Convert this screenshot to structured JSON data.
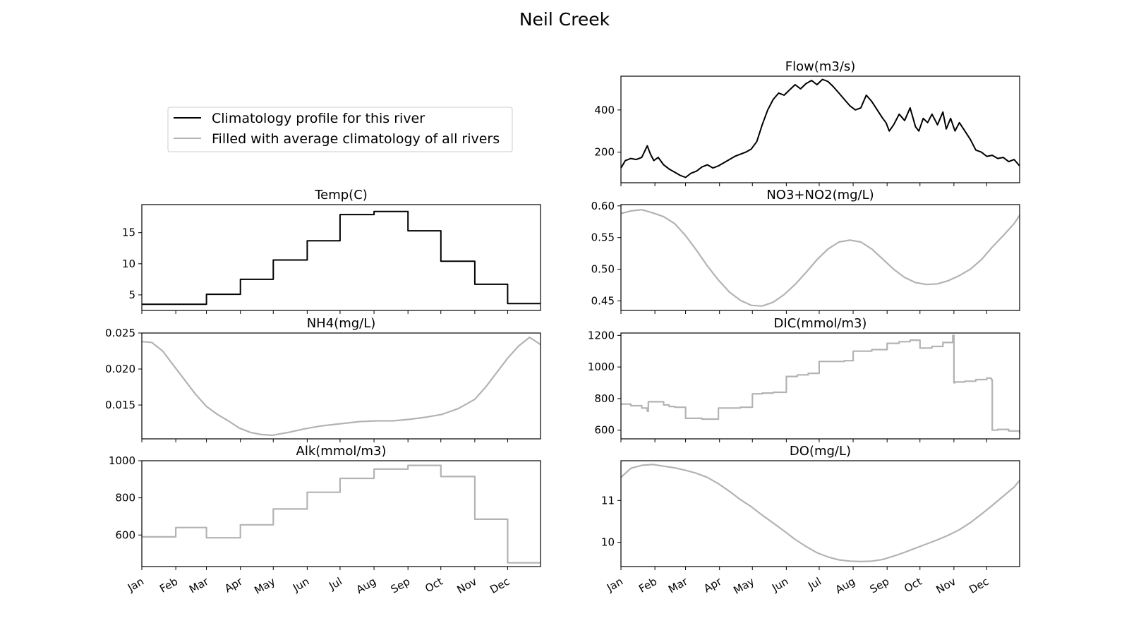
{
  "title": "Neil Creek",
  "months": [
    "Jan",
    "Feb",
    "Mar",
    "Apr",
    "May",
    "Jun",
    "Jul",
    "Aug",
    "Sep",
    "Oct",
    "Nov",
    "Dec"
  ],
  "colors": {
    "river": "#000000",
    "filled": "#b3b3b3",
    "frame": "#000000"
  },
  "legend": {
    "items": [
      {
        "label": "Climatology profile for this river",
        "color": "#000000"
      },
      {
        "label": "Filled with average climatology of all rivers",
        "color": "#b3b3b3"
      }
    ]
  },
  "chart_data": [
    {
      "id": "temp",
      "type": "line",
      "title": "Temp(C)",
      "source": "river",
      "kind": "step",
      "ylim": [
        2.5,
        19.5
      ],
      "yticks": [
        5,
        10,
        15
      ],
      "x": [
        1,
        32,
        60,
        91,
        121,
        152,
        182,
        213,
        244,
        274,
        305,
        335,
        365
      ],
      "y": [
        3.5,
        3.5,
        5.1,
        7.5,
        10.6,
        13.7,
        17.9,
        18.4,
        15.3,
        10.4,
        6.7,
        3.6,
        3.6
      ]
    },
    {
      "id": "nh4",
      "type": "line",
      "title": "NH4(mg/L)",
      "source": "filled",
      "kind": "smooth",
      "ylim": [
        0.0103,
        0.025
      ],
      "yticks": [
        0.015,
        0.02,
        0.025
      ],
      "x": [
        1,
        10,
        20,
        30,
        40,
        50,
        60,
        70,
        80,
        90,
        100,
        110,
        120,
        135,
        150,
        165,
        182,
        200,
        215,
        230,
        245,
        260,
        275,
        290,
        305,
        315,
        325,
        335,
        345,
        355,
        365
      ],
      "y": [
        0.0238,
        0.0237,
        0.0225,
        0.0205,
        0.0185,
        0.0165,
        0.0148,
        0.0137,
        0.0128,
        0.0118,
        0.0112,
        0.0109,
        0.0108,
        0.0112,
        0.0117,
        0.0121,
        0.0124,
        0.0127,
        0.0128,
        0.0128,
        0.013,
        0.0133,
        0.0137,
        0.0145,
        0.0158,
        0.0175,
        0.0195,
        0.0215,
        0.0232,
        0.0244,
        0.0234
      ]
    },
    {
      "id": "alk",
      "type": "line",
      "title": "Alk(mmol/m3)",
      "source": "filled",
      "kind": "step",
      "ylim": [
        430,
        1000
      ],
      "yticks": [
        600,
        800,
        1000
      ],
      "x": [
        1,
        32,
        60,
        91,
        121,
        152,
        182,
        213,
        244,
        274,
        305,
        335,
        365
      ],
      "y": [
        590,
        640,
        585,
        655,
        740,
        830,
        905,
        955,
        975,
        915,
        685,
        450,
        450
      ]
    },
    {
      "id": "flow",
      "type": "line",
      "title": "Flow(m3/s)",
      "source": "river",
      "kind": "smooth",
      "ylim": [
        55,
        560
      ],
      "yticks": [
        200,
        400
      ],
      "x": [
        1,
        5,
        10,
        15,
        20,
        25,
        28,
        31,
        35,
        40,
        45,
        50,
        55,
        60,
        65,
        70,
        75,
        80,
        85,
        90,
        95,
        100,
        105,
        110,
        115,
        120,
        125,
        130,
        135,
        140,
        145,
        150,
        155,
        160,
        165,
        170,
        175,
        180,
        185,
        190,
        195,
        200,
        205,
        210,
        215,
        220,
        225,
        230,
        235,
        240,
        243,
        246,
        250,
        255,
        260,
        265,
        270,
        273,
        277,
        281,
        285,
        290,
        295,
        298,
        302,
        306,
        310,
        315,
        320,
        325,
        330,
        335,
        340,
        345,
        350,
        355,
        360,
        365
      ],
      "y": [
        125,
        160,
        170,
        165,
        175,
        230,
        190,
        160,
        175,
        140,
        120,
        105,
        90,
        80,
        100,
        110,
        130,
        140,
        125,
        135,
        150,
        165,
        180,
        190,
        200,
        215,
        250,
        330,
        400,
        450,
        480,
        470,
        495,
        520,
        500,
        525,
        540,
        520,
        545,
        535,
        510,
        480,
        450,
        420,
        400,
        410,
        470,
        440,
        400,
        360,
        340,
        300,
        330,
        380,
        350,
        410,
        320,
        300,
        360,
        340,
        380,
        330,
        390,
        310,
        360,
        300,
        340,
        300,
        260,
        210,
        200,
        180,
        185,
        170,
        175,
        155,
        165,
        135
      ]
    },
    {
      "id": "no3",
      "type": "line",
      "title": "NO3+NO2(mg/L)",
      "source": "filled",
      "kind": "smooth",
      "ylim": [
        0.435,
        0.602
      ],
      "yticks": [
        0.45,
        0.5,
        0.55,
        0.6
      ],
      "x": [
        1,
        10,
        20,
        30,
        40,
        50,
        60,
        70,
        80,
        90,
        100,
        110,
        120,
        130,
        140,
        150,
        160,
        170,
        180,
        190,
        200,
        210,
        220,
        230,
        240,
        250,
        260,
        270,
        280,
        290,
        300,
        310,
        320,
        330,
        340,
        350,
        360,
        365
      ],
      "y": [
        0.588,
        0.592,
        0.594,
        0.589,
        0.583,
        0.572,
        0.553,
        0.53,
        0.505,
        0.483,
        0.464,
        0.451,
        0.443,
        0.442,
        0.448,
        0.46,
        0.476,
        0.495,
        0.515,
        0.532,
        0.543,
        0.546,
        0.543,
        0.532,
        0.516,
        0.5,
        0.487,
        0.479,
        0.476,
        0.477,
        0.482,
        0.49,
        0.5,
        0.515,
        0.535,
        0.553,
        0.572,
        0.585
      ]
    },
    {
      "id": "dic",
      "type": "line",
      "title": "DIC(mmol/m3)",
      "source": "filled",
      "kind": "step",
      "ylim": [
        545,
        1215
      ],
      "yticks": [
        600,
        800,
        1000,
        1200
      ],
      "x": [
        1,
        10,
        20,
        25,
        26,
        40,
        45,
        50,
        60,
        75,
        90,
        100,
        110,
        121,
        130,
        140,
        152,
        162,
        172,
        182,
        195,
        205,
        213,
        230,
        244,
        255,
        265,
        274,
        285,
        295,
        304,
        305,
        306,
        315,
        325,
        335,
        339,
        340,
        345,
        355,
        365
      ],
      "y": [
        765,
        755,
        740,
        720,
        780,
        760,
        750,
        745,
        675,
        670,
        740,
        740,
        745,
        830,
        835,
        840,
        940,
        950,
        960,
        1035,
        1035,
        1040,
        1100,
        1110,
        1150,
        1160,
        1170,
        1120,
        1130,
        1155,
        1200,
        900,
        905,
        910,
        920,
        930,
        920,
        600,
        605,
        595,
        580
      ]
    },
    {
      "id": "do",
      "type": "line",
      "title": "DO(mg/L)",
      "source": "filled",
      "kind": "smooth",
      "ylim": [
        9.42,
        11.95
      ],
      "yticks": [
        10,
        11
      ],
      "x": [
        1,
        10,
        20,
        30,
        40,
        50,
        60,
        70,
        80,
        90,
        100,
        110,
        120,
        130,
        140,
        150,
        160,
        170,
        180,
        190,
        200,
        210,
        220,
        230,
        240,
        250,
        260,
        270,
        280,
        290,
        300,
        310,
        320,
        330,
        340,
        350,
        360,
        365
      ],
      "y": [
        11.55,
        11.77,
        11.84,
        11.86,
        11.82,
        11.78,
        11.72,
        11.65,
        11.55,
        11.4,
        11.22,
        11.02,
        10.85,
        10.65,
        10.46,
        10.27,
        10.07,
        9.9,
        9.75,
        9.65,
        9.58,
        9.55,
        9.54,
        9.55,
        9.59,
        9.67,
        9.76,
        9.86,
        9.96,
        10.06,
        10.17,
        10.3,
        10.47,
        10.67,
        10.88,
        11.1,
        11.32,
        11.48
      ]
    }
  ]
}
